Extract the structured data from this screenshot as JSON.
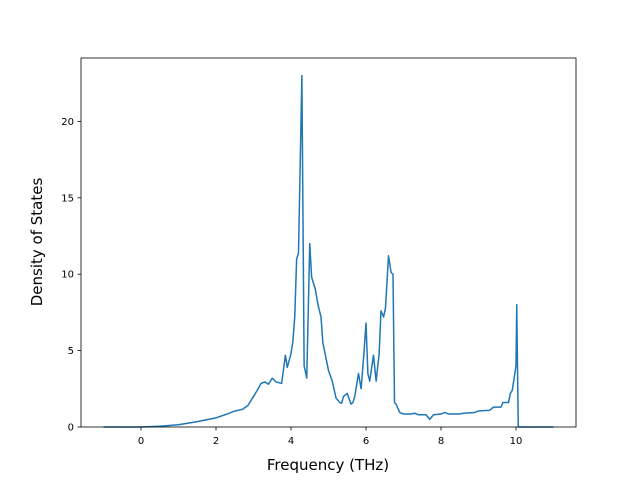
{
  "chart_data": {
    "type": "line",
    "xlabel": "Frequency (THz)",
    "ylabel": "Density of States",
    "x": [
      -1,
      0,
      0.5,
      1,
      1.5,
      2,
      2.3,
      2.5,
      2.7,
      2.85,
      3.0,
      3.1,
      3.2,
      3.3,
      3.4,
      3.5,
      3.6,
      3.75,
      3.85,
      3.9,
      4.0,
      4.05,
      4.1,
      4.15,
      4.2,
      4.29,
      4.35,
      4.42,
      4.5,
      4.55,
      4.65,
      4.72,
      4.8,
      4.85,
      4.95,
      5.0,
      5.1,
      5.2,
      5.3,
      5.35,
      5.4,
      5.5,
      5.6,
      5.65,
      5.7,
      5.8,
      5.87,
      5.95,
      6.0,
      6.05,
      6.1,
      6.2,
      6.27,
      6.35,
      6.4,
      6.47,
      6.52,
      6.6,
      6.67,
      6.72,
      6.76,
      6.8,
      6.9,
      7.0,
      7.2,
      7.3,
      7.4,
      7.6,
      7.7,
      7.8,
      8.0,
      8.1,
      8.2,
      8.5,
      8.6,
      8.9,
      9.0,
      9.3,
      9.4,
      9.6,
      9.65,
      9.8,
      9.85,
      9.9,
      10.0,
      10.02,
      10.06,
      10.5,
      11
    ],
    "series": [
      {
        "color": "#1f77b4",
        "values": [
          0,
          0,
          0.05,
          0.15,
          0.35,
          0.6,
          0.85,
          1.05,
          1.15,
          1.4,
          2.0,
          2.4,
          2.85,
          2.95,
          2.8,
          3.2,
          2.95,
          2.85,
          4.7,
          3.9,
          4.8,
          5.6,
          7.2,
          11,
          11.4,
          23,
          4,
          3.2,
          12,
          9.8,
          9,
          8,
          7.2,
          5.5,
          4.3,
          3.7,
          3,
          1.9,
          1.6,
          1.55,
          2.0,
          2.2,
          1.5,
          1.6,
          2.0,
          3.5,
          2.5,
          5,
          6.8,
          3.5,
          3.0,
          4.7,
          3.0,
          4.8,
          7.6,
          7.2,
          7.8,
          11.2,
          10.1,
          10,
          1.6,
          1.5,
          0.95,
          0.85,
          0.85,
          0.9,
          0.8,
          0.8,
          0.5,
          0.8,
          0.85,
          0.95,
          0.85,
          0.85,
          0.9,
          0.95,
          1.05,
          1.1,
          1.3,
          1.3,
          1.6,
          1.6,
          2.2,
          2.4,
          4,
          8,
          0,
          0,
          0
        ]
      }
    ],
    "xlim": [
      -1.6,
      11.6
    ],
    "ylim": [
      0,
      24.15
    ],
    "xticks": [
      0,
      2,
      4,
      6,
      8,
      10
    ],
    "yticks": [
      0,
      5,
      10,
      15,
      20
    ],
    "grid": false
  }
}
